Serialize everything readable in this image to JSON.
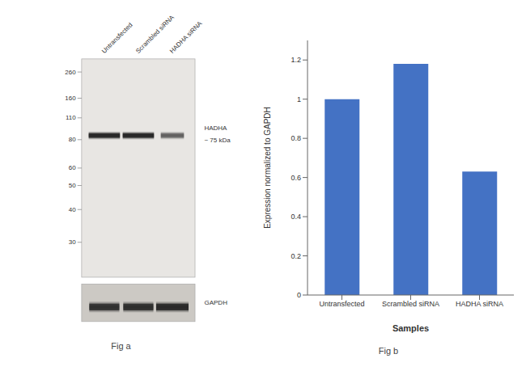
{
  "chart_data": [
    {
      "type": "western_blot",
      "title": "Fig a",
      "categories": [
        "Untransfected",
        "Scrambled siRNA",
        "HADHA siRNA"
      ],
      "yticks": [
        260,
        160,
        110,
        80,
        60,
        50,
        40,
        30
      ],
      "annotations": [
        "HADHA",
        "~ 75 kDa",
        "GAPDH"
      ]
    },
    {
      "type": "bar",
      "title": "Fig b",
      "categories": [
        "Untransfected",
        "Scrambled siRNA",
        "HADHA siRNA"
      ],
      "values": [
        1.0,
        1.18,
        0.63
      ],
      "color": "#4472C4",
      "ylim": [
        0,
        1.3
      ],
      "yticks": [
        0,
        0.2,
        0.4,
        0.6,
        0.8,
        1,
        1.2
      ],
      "xlabel": "Samples",
      "ylabel": "Expression normalized to GAPDH"
    }
  ]
}
